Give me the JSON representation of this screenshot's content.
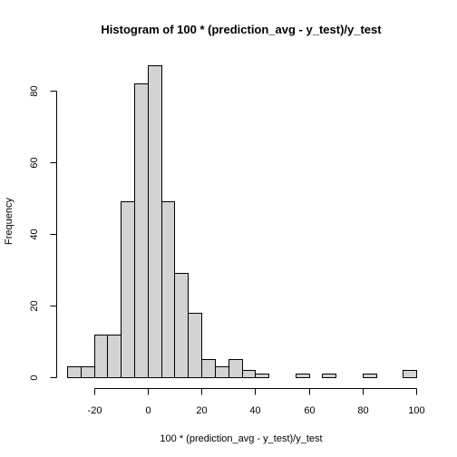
{
  "chart_data": {
    "type": "bar",
    "title": "Histogram of 100 * (prediction_avg - y_test)/y_test",
    "xlabel": "100 * (prediction_avg - y_test)/y_test",
    "ylabel": "Frequency",
    "bin_width": 5,
    "bins": [
      {
        "from": -30,
        "to": -25,
        "count": 3
      },
      {
        "from": -25,
        "to": -20,
        "count": 3
      },
      {
        "from": -20,
        "to": -15,
        "count": 12
      },
      {
        "from": -15,
        "to": -10,
        "count": 12
      },
      {
        "from": -10,
        "to": -5,
        "count": 49
      },
      {
        "from": -5,
        "to": 0,
        "count": 82
      },
      {
        "from": 0,
        "to": 5,
        "count": 87
      },
      {
        "from": 5,
        "to": 10,
        "count": 49
      },
      {
        "from": 10,
        "to": 15,
        "count": 29
      },
      {
        "from": 15,
        "to": 20,
        "count": 18
      },
      {
        "from": 20,
        "to": 25,
        "count": 5
      },
      {
        "from": 25,
        "to": 30,
        "count": 3
      },
      {
        "from": 30,
        "to": 35,
        "count": 5
      },
      {
        "from": 35,
        "to": 40,
        "count": 2
      },
      {
        "from": 40,
        "to": 45,
        "count": 1
      },
      {
        "from": 45,
        "to": 50,
        "count": 0
      },
      {
        "from": 50,
        "to": 55,
        "count": 0
      },
      {
        "from": 55,
        "to": 60,
        "count": 1
      },
      {
        "from": 60,
        "to": 65,
        "count": 0
      },
      {
        "from": 65,
        "to": 70,
        "count": 1
      },
      {
        "from": 70,
        "to": 75,
        "count": 0
      },
      {
        "from": 75,
        "to": 80,
        "count": 0
      },
      {
        "from": 80,
        "to": 85,
        "count": 1
      },
      {
        "from": 85,
        "to": 90,
        "count": 0
      },
      {
        "from": 90,
        "to": 95,
        "count": 0
      },
      {
        "from": 95,
        "to": 100,
        "count": 2
      }
    ],
    "xlim": [
      -30,
      100
    ],
    "ylim": [
      0,
      87
    ],
    "x_ticks": [
      -20,
      0,
      20,
      40,
      60,
      80,
      100
    ],
    "y_ticks": [
      0,
      20,
      40,
      60,
      80
    ],
    "grid": false,
    "colors": {
      "bar_fill": "#d3d3d3",
      "bar_stroke": "#000000"
    }
  }
}
